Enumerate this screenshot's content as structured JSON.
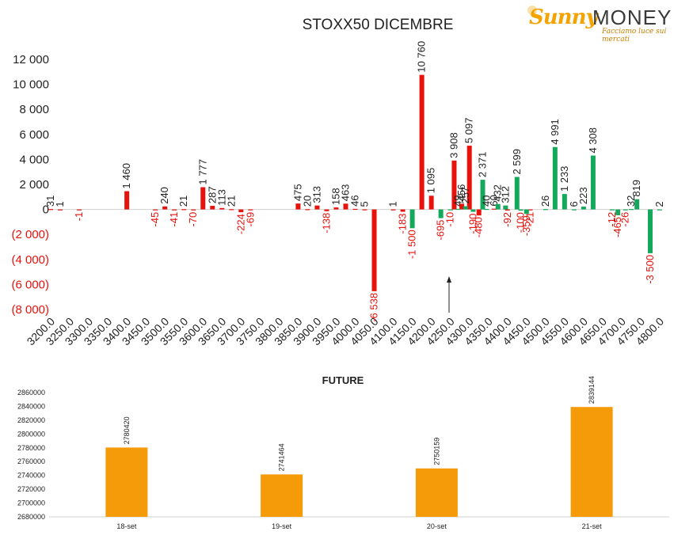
{
  "logo": {
    "word1": "Sunny",
    "word2": "MONEY",
    "tagline": "Facciamo luce sui mercati"
  },
  "chart_data": [
    {
      "type": "bar",
      "title": "STOXX50 DICEMBRE",
      "xlabel": "",
      "ylabel": "",
      "ylim": [
        -8000,
        12000
      ],
      "yticks": [
        12000,
        10000,
        8000,
        6000,
        4000,
        2000,
        0,
        -2000,
        -4000,
        -6000,
        -8000
      ],
      "ytick_labels": [
        "12 000",
        "10 000",
        "8 000",
        "6 000",
        "4 000",
        "2 000",
        "0",
        "(2 000)",
        "(4 000)",
        "(6 000)",
        "(8 000)"
      ],
      "categories": [
        "3200.0",
        "3250.0",
        "3300.0",
        "3350.0",
        "3400.0",
        "3450.0",
        "3500.0",
        "3550.0",
        "3600.0",
        "3650.0",
        "3700.0",
        "3750.0",
        "3800.0",
        "3850.0",
        "3900.0",
        "3950.0",
        "4000.0",
        "4050.0",
        "4100.0",
        "4150.0",
        "4200.0",
        "4250.0",
        "4300.0",
        "4350.0",
        "4400.0",
        "4450.0",
        "4500.0",
        "4550.0",
        "4600.0",
        "4650.0",
        "4700.0",
        "4750.0",
        "4800.0"
      ],
      "xrange": [
        3200,
        4800
      ],
      "series": [
        {
          "color": "#e8120c",
          "points": [
            [
              3200,
              31
            ],
            [
              3225,
              1
            ],
            [
              3275,
              -1
            ],
            [
              3400,
              1460
            ],
            [
              3475,
              -45
            ],
            [
              3500,
              240
            ],
            [
              3525,
              -41
            ],
            [
              3550,
              21
            ],
            [
              3575,
              -70
            ],
            [
              3600,
              1777
            ],
            [
              3625,
              287
            ],
            [
              3650,
              113
            ],
            [
              3675,
              21
            ],
            [
              3700,
              -224
            ],
            [
              3725,
              -69
            ],
            [
              3850,
              475
            ],
            [
              3875,
              20
            ],
            [
              3900,
              313
            ],
            [
              3925,
              -138
            ],
            [
              3950,
              158
            ],
            [
              3975,
              463
            ],
            [
              4000,
              46
            ],
            [
              4025,
              5
            ],
            [
              4050,
              -6538
            ],
            [
              4100,
              1
            ],
            [
              4125,
              -183
            ],
            [
              4175,
              10760
            ],
            [
              4200,
              1095
            ],
            [
              4260,
              3908
            ],
            [
              4280,
              456
            ],
            [
              4300,
              5097
            ],
            [
              4325,
              -480
            ],
            [
              4365,
              60
            ],
            [
              4400,
              -92
            ],
            [
              4460,
              -21
            ]
          ]
        },
        {
          "color": "#13a85b",
          "points": [
            [
              4150,
              -1500
            ],
            [
              4225,
              -695
            ],
            [
              4250,
              -10
            ],
            [
              4270,
              49
            ],
            [
              4290,
              257
            ],
            [
              4310,
              -190
            ],
            [
              4335,
              2371
            ],
            [
              4345,
              40
            ],
            [
              4375,
              432
            ],
            [
              4395,
              312
            ],
            [
              4425,
              2599
            ],
            [
              4435,
              -100
            ],
            [
              4450,
              -359
            ],
            [
              4500,
              26
            ],
            [
              4525,
              4991
            ],
            [
              4550,
              1233
            ],
            [
              4575,
              6
            ],
            [
              4600,
              223
            ],
            [
              4625,
              4308
            ],
            [
              4675,
              -12
            ],
            [
              4690,
              -465
            ],
            [
              4710,
              -26
            ],
            [
              4725,
              32
            ],
            [
              4740,
              819
            ],
            [
              4775,
              -3500
            ],
            [
              4800,
              2
            ]
          ]
        }
      ],
      "annotation": "arrow"
    },
    {
      "type": "bar",
      "title": "FUTURE",
      "categories": [
        "18-set",
        "19-set",
        "20-set",
        "21-set"
      ],
      "values": [
        2780420,
        2741464,
        2750159,
        2839144
      ],
      "ylim": [
        2680000,
        2860000
      ],
      "yticks": [
        2680000,
        2700000,
        2720000,
        2740000,
        2760000,
        2780000,
        2800000,
        2820000,
        2840000,
        2860000
      ],
      "color": "#f59b0a"
    }
  ]
}
